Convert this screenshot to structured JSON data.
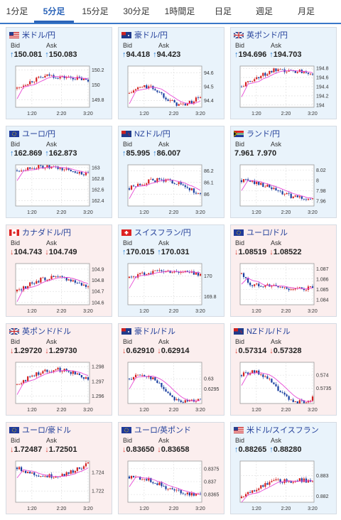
{
  "tabs": [
    "1分足",
    "5分足",
    "15分足",
    "30分足",
    "1時間足",
    "日足",
    "週足",
    "月足"
  ],
  "active_tab": 1,
  "x_ticks": [
    "1:20",
    "2:20",
    "3:20"
  ],
  "colors": {
    "up": "#2a7fd4",
    "down": "#d9443a",
    "ma": "#e84ad6",
    "ma2": "#5aa0e0",
    "candle_up": "#d32020",
    "candle_dn": "#1a3fa0"
  },
  "panels": [
    {
      "name": "米ドル/円",
      "flag": "us",
      "dir": "up",
      "bid": "150.081",
      "ask": "150.083",
      "ticks": [
        "150.2",
        "150",
        "149.8"
      ],
      "ylim": [
        149.7,
        150.25
      ],
      "start": 149.95,
      "end": 150.05,
      "shape": "rise_flat"
    },
    {
      "name": "豪ドル/円",
      "flag": "au",
      "dir": "up",
      "bid": "94.418",
      "ask": "94.423",
      "ticks": [
        "94.6",
        "94.5",
        "94.4"
      ],
      "ylim": [
        94.35,
        94.65
      ],
      "start": 94.45,
      "end": 94.43,
      "shape": "wave_down"
    },
    {
      "name": "英ポンド/円",
      "flag": "gb",
      "dir": "up",
      "bid": "194.696",
      "ask": "194.703",
      "ticks": [
        "194.8",
        "194.6",
        "194.4",
        "194.2",
        "194"
      ],
      "ylim": [
        193.95,
        194.85
      ],
      "start": 194.4,
      "end": 194.7,
      "shape": "rise_flat"
    },
    {
      "name": "ユーロ/円",
      "flag": "eu",
      "dir": "up",
      "bid": "162.869",
      "ask": "162.873",
      "ticks": [
        "163",
        "162.8",
        "162.6",
        "162.4"
      ],
      "ylim": [
        162.3,
        163.05
      ],
      "start": 162.95,
      "end": 162.87,
      "shape": "flat"
    },
    {
      "name": "NZドル/円",
      "flag": "nz",
      "dir": "up",
      "bid": "85.995",
      "ask": "86.007",
      "ticks": [
        "86.2",
        "86.1",
        "86"
      ],
      "ylim": [
        85.9,
        86.25
      ],
      "start": 86.05,
      "end": 85.99,
      "shape": "hump_down"
    },
    {
      "name": "ランド/円",
      "flag": "za",
      "dir": "flat",
      "bid": "7.961",
      "ask": "7.970",
      "ticks": [
        "8.02",
        "8",
        "7.98",
        "7.96"
      ],
      "ylim": [
        7.95,
        8.03
      ],
      "start": 8.0,
      "end": 7.963,
      "shape": "fall"
    },
    {
      "name": "カナダドル/円",
      "flag": "ca",
      "dir": "down",
      "bid": "104.743",
      "ask": "104.749",
      "ticks": [
        "104.9",
        "104.8",
        "104.7",
        "104.6"
      ],
      "ylim": [
        104.58,
        104.95
      ],
      "start": 104.7,
      "end": 104.74,
      "shape": "hump_down"
    },
    {
      "name": "スイスフラン/円",
      "flag": "ch",
      "dir": "up",
      "bid": "170.015",
      "ask": "170.031",
      "ticks": [
        "170",
        "169.8"
      ],
      "ylim": [
        169.72,
        170.12
      ],
      "start": 169.98,
      "end": 170.02,
      "shape": "flat"
    },
    {
      "name": "ユーロ/ドル",
      "flag": "eu",
      "dir": "down",
      "bid": "1.08519",
      "ask": "1.08522",
      "ticks": [
        "1.087",
        "1.086",
        "1.085",
        "1.084"
      ],
      "ylim": [
        1.0835,
        1.0875
      ],
      "start": 1.0865,
      "end": 1.0852,
      "shape": "drop_flat"
    },
    {
      "name": "英ポンド/ドル",
      "flag": "gb",
      "dir": "down",
      "bid": "1.29720",
      "ask": "1.29730",
      "ticks": [
        "1.298",
        "1.297",
        "1.296"
      ],
      "ylim": [
        1.2955,
        1.2983
      ],
      "start": 1.2968,
      "end": 1.2972,
      "shape": "hump_down"
    },
    {
      "name": "豪ドル/ドル",
      "flag": "au",
      "dir": "down",
      "bid": "0.62910",
      "ask": "0.62914",
      "ticks": [
        "0.63",
        "0.6295"
      ],
      "ylim": [
        0.6288,
        0.6308
      ],
      "start": 0.63,
      "end": 0.6291,
      "shape": "wave_down"
    },
    {
      "name": "NZドル/ドル",
      "flag": "nz",
      "dir": "down",
      "bid": "0.57314",
      "ask": "0.57328",
      "ticks": [
        "0.574",
        "0.5735"
      ],
      "ylim": [
        0.5729,
        0.5745
      ],
      "start": 0.574,
      "end": 0.5731,
      "shape": "wave_down"
    },
    {
      "name": "ユーロ/豪ドル",
      "flag": "eu",
      "dir": "down",
      "bid": "1.72487",
      "ask": "1.72501",
      "ticks": [
        "1.724",
        "1.722"
      ],
      "ylim": [
        1.7208,
        1.7252
      ],
      "start": 1.7245,
      "end": 1.7249,
      "shape": "dip_rise"
    },
    {
      "name": "ユーロ/英ポンド",
      "flag": "eu",
      "dir": "down",
      "bid": "0.83650",
      "ask": "0.83658",
      "ticks": [
        "0.8375",
        "0.837",
        "0.8365"
      ],
      "ylim": [
        0.8362,
        0.8378
      ],
      "start": 0.8372,
      "end": 0.8365,
      "shape": "fall"
    },
    {
      "name": "米ドル/スイスフラン",
      "flag": "us",
      "dir": "up",
      "bid": "0.88265",
      "ask": "0.88280",
      "ticks": [
        "0.883",
        "0.882"
      ],
      "ylim": [
        0.8817,
        0.8837
      ],
      "start": 0.8819,
      "end": 0.8827,
      "shape": "rise_flat"
    }
  ],
  "chart_data": []
}
